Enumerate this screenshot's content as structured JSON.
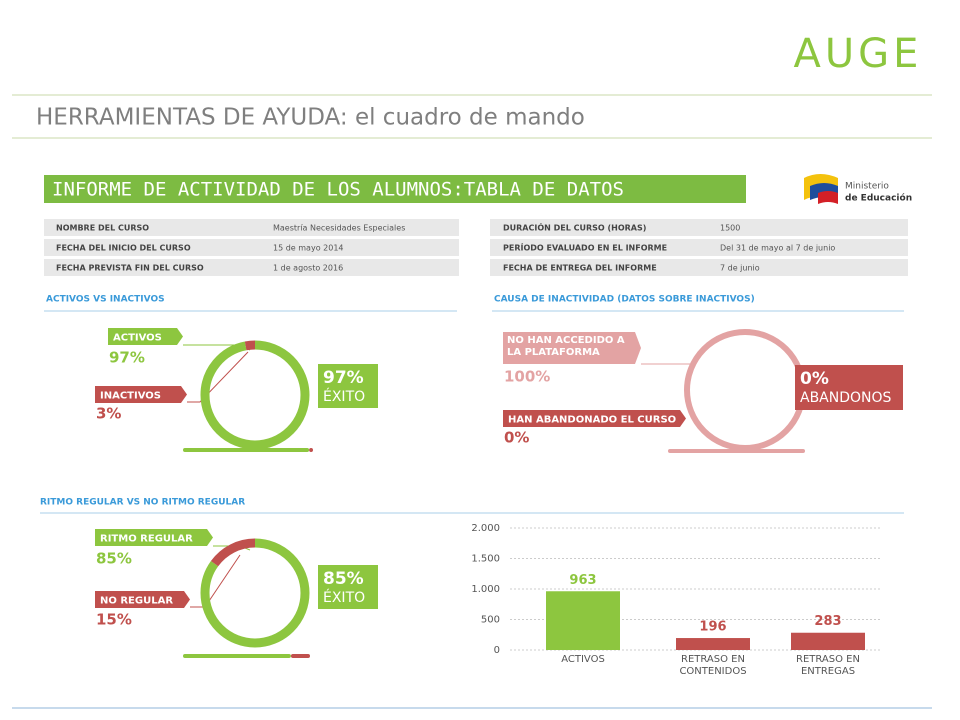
{
  "header": {
    "logo": "AUGE",
    "title": "HERRAMIENTAS DE AYUDA: el cuadro de mando"
  },
  "report": {
    "title": "INFORME DE ACTIVIDAD DE LOS ALUMNOS:TABLA DE DATOS",
    "ministry": [
      "Ministerio",
      "de Educación"
    ],
    "left_rows": [
      [
        "NOMBRE DEL CURSO",
        "Maestría Necesidades Especiales"
      ],
      [
        "FECHA DEL INICIO DEL CURSO",
        "15 de mayo 2014"
      ],
      [
        "FECHA PREVISTA FIN DEL CURSO",
        "1 de agosto 2016"
      ]
    ],
    "right_rows": [
      [
        "DURACIÓN DEL CURSO (HORAS)",
        "1500"
      ],
      [
        "PERÍODO EVALUADO EN EL INFORME",
        "Del 31 de mayo al 7 de junio"
      ],
      [
        "FECHA DE ENTREGA DEL INFORME",
        "7 de junio"
      ]
    ]
  },
  "chart_data": [
    {
      "type": "pie",
      "title": "ACTIVOS VS INACTIVOS",
      "categories": [
        "ACTIVOS",
        "INACTIVOS"
      ],
      "values": [
        97,
        3
      ],
      "value_labels": [
        "97%",
        "3%"
      ],
      "colors": [
        "#8dc63f",
        "#c0504d"
      ],
      "center_label": "ÉXITO"
    },
    {
      "type": "pie",
      "title": "CAUSA DE INACTIVIDAD (DATOS SOBRE INACTIVOS)",
      "categories": [
        "NO HAN ACCEDIDO A LA PLATAFORMA",
        "HAN ABANDONADO EL CURSO"
      ],
      "values": [
        100,
        0
      ],
      "value_labels": [
        "100%",
        "0%"
      ],
      "colors": [
        "#e3a3a3",
        "#c0504d"
      ],
      "center_label": "ABANDONOS"
    },
    {
      "type": "pie",
      "title": "RITMO REGULAR VS NO RITMO REGULAR",
      "categories": [
        "RITMO REGULAR",
        "NO REGULAR"
      ],
      "values": [
        85,
        15
      ],
      "value_labels": [
        "85%",
        "15%"
      ],
      "colors": [
        "#8dc63f",
        "#c0504d"
      ],
      "center_label": "ÉXITO"
    },
    {
      "type": "bar",
      "categories": [
        "ACTIVOS",
        "RETRASO EN CONTENIDOS",
        "RETRASO EN ENTREGAS"
      ],
      "values": [
        963,
        196,
        283
      ],
      "colors": [
        "#8dc63f",
        "#c0504d",
        "#c0504d"
      ],
      "ylim": [
        0,
        2000
      ],
      "yticks": [
        0,
        500,
        {
          "value": 1000,
          "label": "1.000"
        },
        {
          "value": 1500,
          "label": "1.500"
        },
        {
          "value": 2000,
          "label": "2.000"
        }
      ],
      "grid": true
    }
  ]
}
